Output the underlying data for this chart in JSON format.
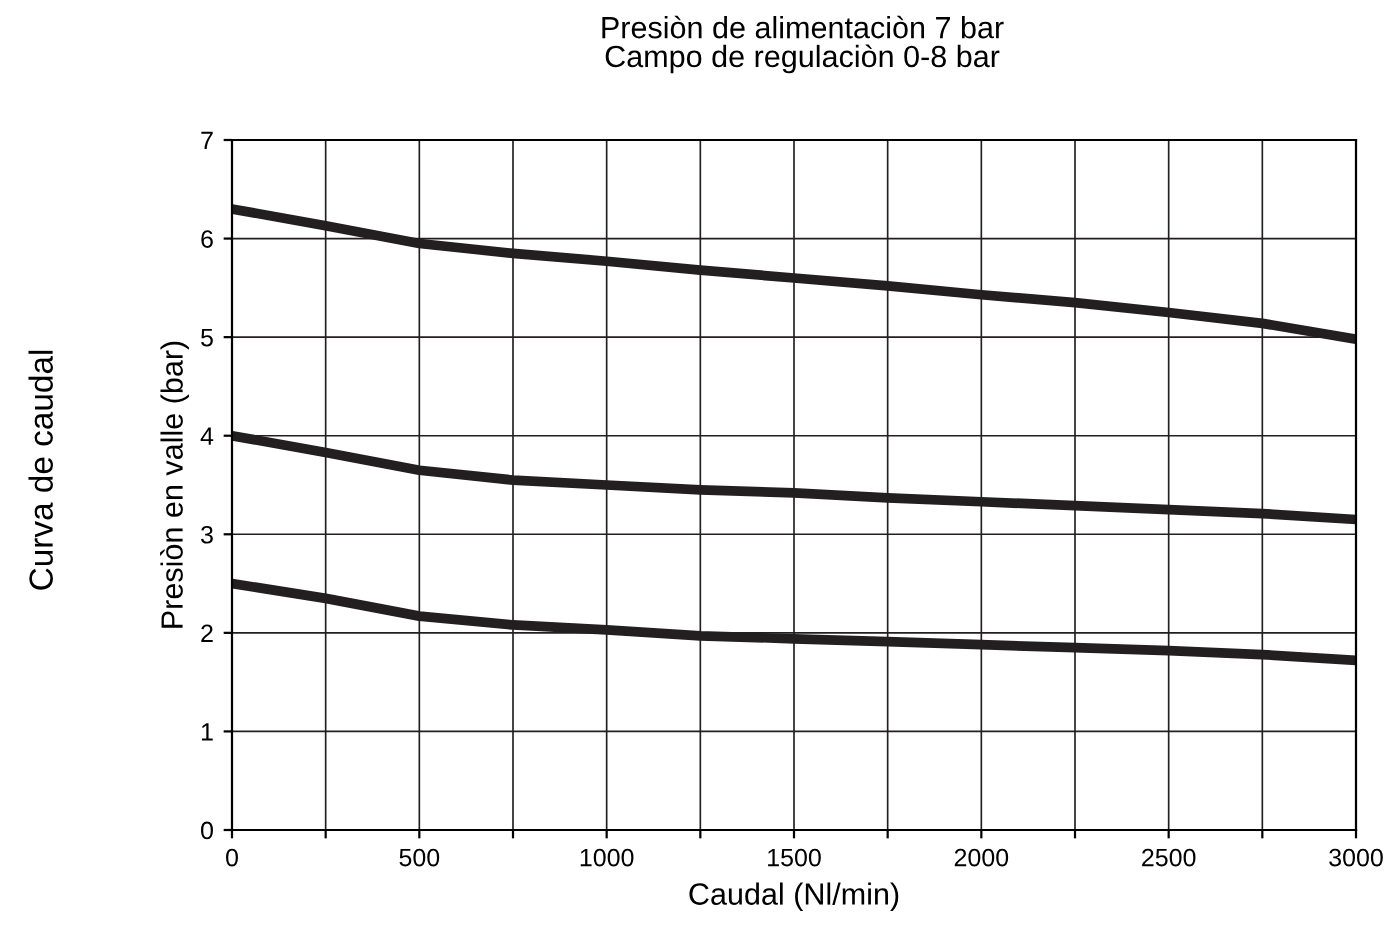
{
  "chart_data": {
    "type": "line",
    "title": "Presiòn de alimentaciòn 7 bar",
    "subtitle": "Campo de regulaciòn 0-8 bar",
    "xlabel": "Caudal (Nl/min)",
    "ylabel": "Presiòn en valle (bar)",
    "annotations": [
      "Curva de caudal"
    ],
    "x": [
      0,
      250,
      500,
      750,
      1000,
      1250,
      1500,
      1750,
      2000,
      2250,
      2500,
      2750,
      3000
    ],
    "series": [
      {
        "color": "#231f20",
        "values": [
          6.3,
          6.13,
          5.95,
          5.85,
          5.77,
          5.68,
          5.6,
          5.52,
          5.43,
          5.35,
          5.25,
          5.14,
          4.98
        ]
      },
      {
        "color": "#231f20",
        "values": [
          4.0,
          3.83,
          3.65,
          3.55,
          3.5,
          3.45,
          3.42,
          3.37,
          3.33,
          3.29,
          3.25,
          3.21,
          3.15
        ]
      },
      {
        "color": "#231f20",
        "values": [
          2.5,
          2.35,
          2.17,
          2.08,
          2.03,
          1.97,
          1.94,
          1.91,
          1.88,
          1.85,
          1.82,
          1.78,
          1.72
        ]
      }
    ],
    "xlim": [
      0,
      3000
    ],
    "ylim": [
      0,
      7
    ],
    "xticks": [
      0,
      {
        "value": 250,
        "label": null
      },
      500,
      {
        "value": 750,
        "label": null
      },
      1000,
      {
        "value": 1250,
        "label": null
      },
      1500,
      {
        "value": 1750,
        "label": null
      },
      2000,
      {
        "value": 2250,
        "label": null
      },
      2500,
      {
        "value": 2750,
        "label": null
      },
      3000
    ],
    "yticks": [
      0,
      1,
      2,
      3,
      4,
      5,
      6,
      7
    ],
    "grid": true,
    "legend": false,
    "marker": "none",
    "line_style": "solid"
  }
}
